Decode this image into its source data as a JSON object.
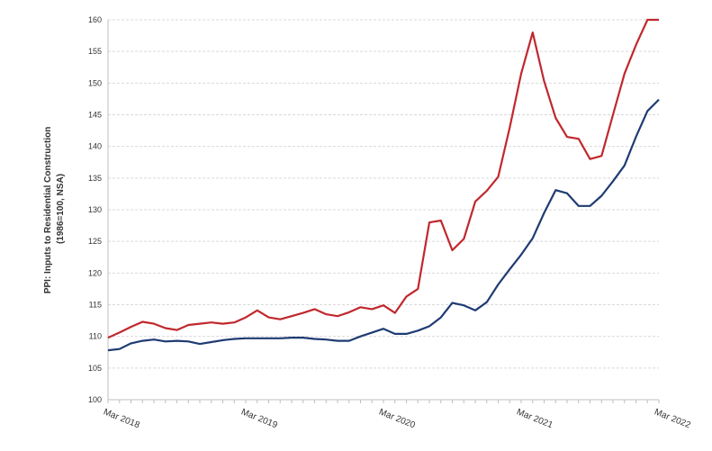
{
  "chart_data": {
    "type": "line",
    "title": "",
    "ylabel": "PPI: Inputs to Residential Construction\n(1986=100, NSA)",
    "xlabel": "",
    "ylim": [
      100,
      160
    ],
    "yticks": [
      100,
      105,
      110,
      115,
      120,
      125,
      130,
      135,
      140,
      145,
      150,
      155,
      160
    ],
    "x_tick_labels": [
      "Mar 2018",
      "Mar 2019",
      "Mar 2020",
      "Mar 2021",
      "Mar 2022"
    ],
    "grid": true,
    "legend": "none",
    "colors": {
      "red": "#c0282d",
      "blue": "#1f3b73",
      "grid": "#d9d9d9",
      "axis": "#bfbfbf"
    },
    "x": [
      "2018-03",
      "2018-04",
      "2018-05",
      "2018-06",
      "2018-07",
      "2018-08",
      "2018-09",
      "2018-10",
      "2018-11",
      "2018-12",
      "2019-01",
      "2019-02",
      "2019-03",
      "2019-04",
      "2019-05",
      "2019-06",
      "2019-07",
      "2019-08",
      "2019-09",
      "2019-10",
      "2019-11",
      "2019-12",
      "2020-01",
      "2020-02",
      "2020-03",
      "2020-04",
      "2020-05",
      "2020-06",
      "2020-07",
      "2020-08",
      "2020-09",
      "2020-10",
      "2020-11",
      "2020-12",
      "2021-01",
      "2021-02",
      "2021-03",
      "2021-04",
      "2021-05",
      "2021-06",
      "2021-07",
      "2021-08",
      "2021-09",
      "2021-10",
      "2021-11",
      "2021-12",
      "2022-01",
      "2022-02",
      "2022-03"
    ],
    "series": [
      {
        "color": "#c0282d",
        "values": [
          109.8,
          110.6,
          111.5,
          112.3,
          112.0,
          111.3,
          111.0,
          111.8,
          112.0,
          112.2,
          112.0,
          112.2,
          113.0,
          114.1,
          113.0,
          112.7,
          113.2,
          113.7,
          114.3,
          113.5,
          113.2,
          113.8,
          114.6,
          114.3,
          114.9,
          113.7,
          116.3,
          117.5,
          128.0,
          128.3,
          123.6,
          125.4,
          131.3,
          133.0,
          135.2,
          143.0,
          151.5,
          158.0,
          150.3,
          144.5,
          141.5,
          141.2,
          138.0,
          138.5,
          145.0,
          151.5,
          156.0,
          160.0,
          160.0
        ]
      },
      {
        "color": "#1f3b73",
        "values": [
          107.8,
          108.0,
          108.9,
          109.3,
          109.5,
          109.2,
          109.3,
          109.2,
          108.8,
          109.1,
          109.4,
          109.6,
          109.7,
          109.7,
          109.7,
          109.7,
          109.8,
          109.8,
          109.6,
          109.5,
          109.3,
          109.3,
          110.0,
          110.6,
          111.2,
          110.4,
          110.4,
          110.9,
          111.6,
          113.0,
          115.3,
          114.9,
          114.1,
          115.4,
          118.2,
          120.6,
          122.9,
          125.5,
          129.5,
          133.1,
          132.6,
          130.6,
          130.6,
          132.2,
          134.5,
          137.0,
          141.5,
          145.6,
          147.4
        ]
      }
    ]
  }
}
